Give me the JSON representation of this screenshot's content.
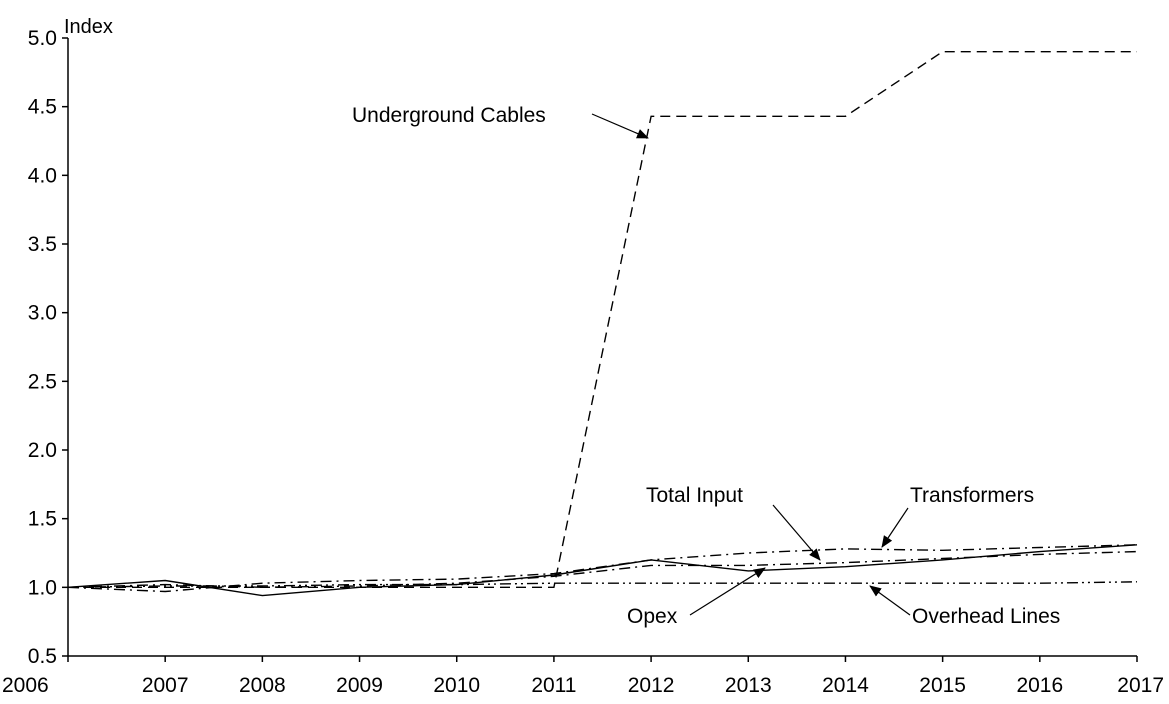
{
  "chart_data": {
    "type": "line",
    "title": "",
    "xlabel": "",
    "ylabel": "Index",
    "x": [
      2006,
      2007,
      2008,
      2009,
      2010,
      2011,
      2012,
      2013,
      2014,
      2015,
      2016,
      2017
    ],
    "xlim": [
      2006,
      2017
    ],
    "ylim": [
      0.5,
      5.0
    ],
    "yticks": [
      "0.5",
      "1.0",
      "1.5",
      "2.0",
      "2.5",
      "3.0",
      "3.5",
      "4.0",
      "4.5",
      "5.0"
    ],
    "xticks": [
      "2006",
      "2007",
      "2008",
      "2009",
      "2010",
      "2011",
      "2012",
      "2013",
      "2014",
      "2015",
      "2016",
      "2017"
    ],
    "grid": false,
    "legend": "none",
    "series": [
      {
        "name": "Underground Cables",
        "style": "dashed",
        "values": [
          1.0,
          1.0,
          1.0,
          1.0,
          1.0,
          1.0,
          4.43,
          4.43,
          4.43,
          4.9,
          4.9,
          4.9
        ]
      },
      {
        "name": "Opex",
        "style": "solid",
        "values": [
          1.0,
          1.05,
          0.94,
          1.0,
          1.02,
          1.09,
          1.2,
          1.12,
          1.15,
          1.2,
          1.26,
          1.31
        ]
      },
      {
        "name": "Total Input",
        "style": "dashdot",
        "values": [
          1.0,
          1.02,
          1.0,
          1.01,
          1.03,
          1.08,
          1.16,
          1.16,
          1.18,
          1.21,
          1.24,
          1.26
        ]
      },
      {
        "name": "Transformers",
        "style": "dashdot",
        "values": [
          1.0,
          0.97,
          1.03,
          1.05,
          1.06,
          1.1,
          1.2,
          1.25,
          1.28,
          1.27,
          1.29,
          1.31
        ]
      },
      {
        "name": "Overhead Lines",
        "style": "dashdotdot",
        "values": [
          1.0,
          1.01,
          1.01,
          1.02,
          1.02,
          1.03,
          1.03,
          1.03,
          1.03,
          1.03,
          1.03,
          1.04
        ]
      }
    ],
    "annotations": [
      {
        "text": "Underground Cables",
        "series": "Underground Cables"
      },
      {
        "text": "Total Input",
        "series": "Total Input"
      },
      {
        "text": "Transformers",
        "series": "Transformers"
      },
      {
        "text": "Opex",
        "series": "Opex"
      },
      {
        "text": "Overhead Lines",
        "series": "Overhead Lines"
      }
    ]
  }
}
